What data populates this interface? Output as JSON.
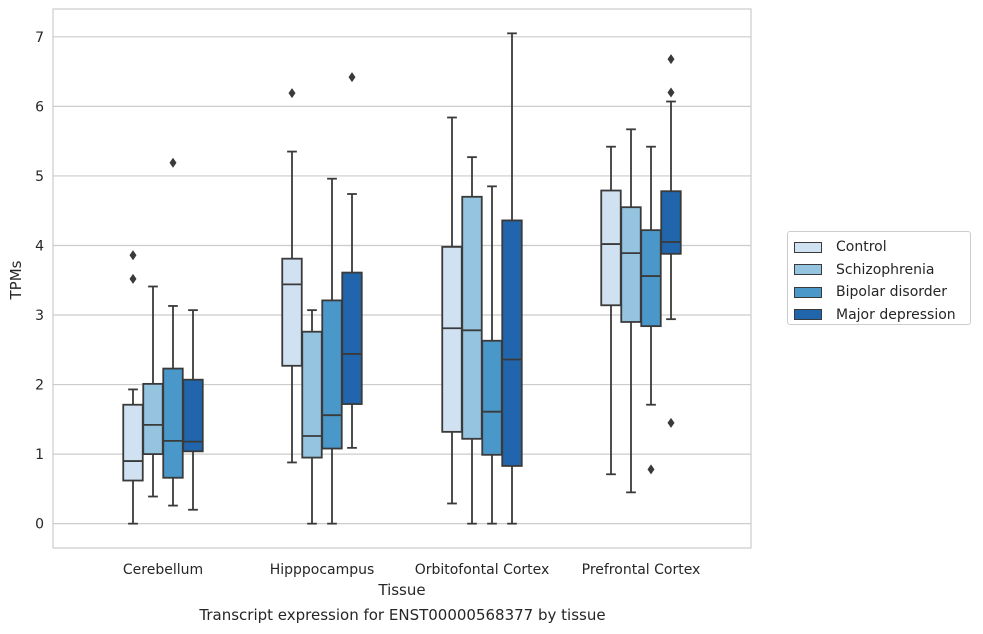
{
  "chart_data": {
    "type": "boxplot",
    "xlabel": "Tissue",
    "ylabel": "TPMs",
    "caption": "Transcript expression for ENST00000568377 by tissue",
    "categories": [
      "Cerebellum",
      "Hipppocampus",
      "Orbitofontal Cortex",
      "Prefrontal Cortex"
    ],
    "ylim": [
      -0.35,
      7.4
    ],
    "yticks": [
      "0",
      "1",
      "2",
      "3",
      "4",
      "5",
      "6",
      "7"
    ],
    "grid": "horizontal",
    "legend_position": "right",
    "series": [
      {
        "name": "Control",
        "color": "#d0e1f2",
        "boxes": [
          {
            "whislo": 0.0,
            "q1": 0.62,
            "med": 0.9,
            "q3": 1.71,
            "whishi": 1.93,
            "fliers": [
              3.52,
              3.86
            ]
          },
          {
            "whislo": 0.88,
            "q1": 2.27,
            "med": 3.44,
            "q3": 3.81,
            "whishi": 5.35,
            "fliers": [
              6.19
            ]
          },
          {
            "whislo": 0.29,
            "q1": 1.32,
            "med": 2.81,
            "q3": 3.98,
            "whishi": 5.84,
            "fliers": []
          },
          {
            "whislo": 0.71,
            "q1": 3.14,
            "med": 4.02,
            "q3": 4.79,
            "whishi": 5.42,
            "fliers": []
          }
        ]
      },
      {
        "name": "Schizophrenia",
        "color": "#94c4df",
        "boxes": [
          {
            "whislo": 0.39,
            "q1": 1.0,
            "med": 1.42,
            "q3": 2.01,
            "whishi": 3.41,
            "fliers": []
          },
          {
            "whislo": 0.0,
            "q1": 0.95,
            "med": 1.26,
            "q3": 2.76,
            "whishi": 3.07,
            "fliers": []
          },
          {
            "whislo": 0.0,
            "q1": 1.22,
            "med": 2.78,
            "q3": 4.7,
            "whishi": 5.27,
            "fliers": []
          },
          {
            "whislo": 0.45,
            "q1": 2.9,
            "med": 3.89,
            "q3": 4.55,
            "whishi": 5.67,
            "fliers": []
          }
        ]
      },
      {
        "name": "Bipolar disorder",
        "color": "#4a98c9",
        "boxes": [
          {
            "whislo": 0.26,
            "q1": 0.66,
            "med": 1.19,
            "q3": 2.23,
            "whishi": 3.13,
            "fliers": [
              5.19
            ]
          },
          {
            "whislo": 0.0,
            "q1": 1.08,
            "med": 1.56,
            "q3": 3.21,
            "whishi": 4.96,
            "fliers": []
          },
          {
            "whislo": 0.0,
            "q1": 0.99,
            "med": 1.61,
            "q3": 2.63,
            "whishi": 4.85,
            "fliers": []
          },
          {
            "whislo": 1.71,
            "q1": 2.84,
            "med": 3.56,
            "q3": 4.22,
            "whishi": 5.42,
            "fliers": [
              0.78
            ]
          }
        ]
      },
      {
        "name": "Major depression",
        "color": "#2166ac",
        "boxes": [
          {
            "whislo": 0.2,
            "q1": 1.04,
            "med": 1.18,
            "q3": 2.07,
            "whishi": 3.07,
            "fliers": []
          },
          {
            "whislo": 1.09,
            "q1": 1.72,
            "med": 2.44,
            "q3": 3.61,
            "whishi": 4.74,
            "fliers": [
              6.42
            ]
          },
          {
            "whislo": 0.0,
            "q1": 0.83,
            "med": 2.36,
            "q3": 4.36,
            "whishi": 7.05,
            "fliers": []
          },
          {
            "whislo": 2.94,
            "q1": 3.88,
            "med": 4.05,
            "q3": 4.78,
            "whishi": 6.07,
            "fliers": [
              1.45,
              6.2,
              6.68
            ]
          }
        ]
      }
    ]
  }
}
